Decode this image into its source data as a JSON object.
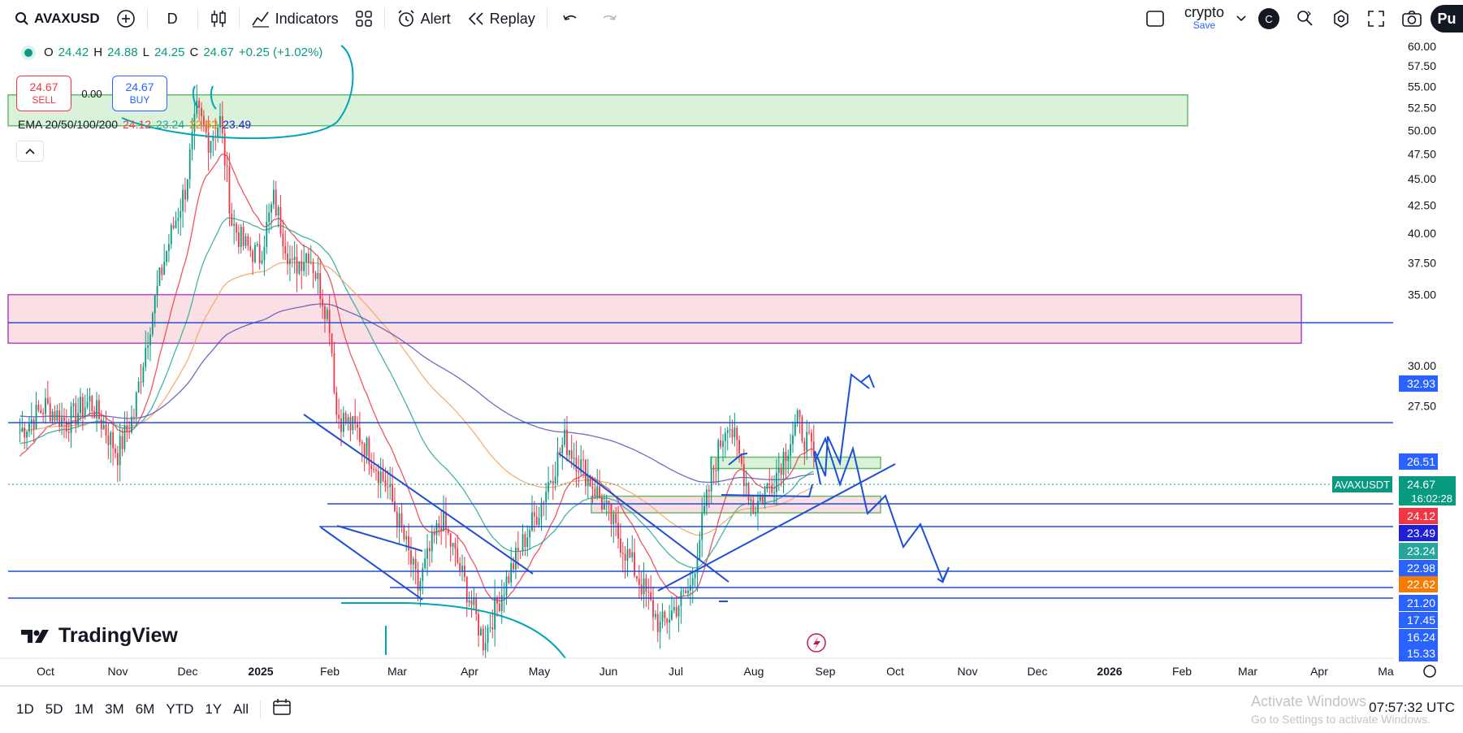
{
  "toolbar": {
    "symbol": "AVAXUSD",
    "interval": "D",
    "indicators_label": "Indicators",
    "alert_label": "Alert",
    "replay_label": "Replay",
    "layout_name": "crypto",
    "save_label": "Save",
    "avatar_initial": "C",
    "publish_label": "Pu"
  },
  "legend": {
    "open_label": "O",
    "open": "24.42",
    "high_label": "H",
    "high": "24.88",
    "low_label": "L",
    "low": "24.25",
    "close_label": "C",
    "close": "24.67",
    "change": "+0.25 (+1.02%)",
    "sell_price": "24.67",
    "sell_label": "SELL",
    "spread": "0.00",
    "buy_price": "24.67",
    "buy_label": "BUY",
    "ema_label": "EMA 20/50/100/200",
    "ema_values": [
      "24.12",
      "23.24",
      "22.62",
      "23.49"
    ]
  },
  "colors": {
    "up": "#089981",
    "down": "#f23645",
    "blue": "#2962ff",
    "ema20": "#f23645",
    "ema50": "#26a69a",
    "ema100": "#f0a35c",
    "ema200": "#5b4fb5",
    "drawing_blue": "#1e4fd6",
    "drawing_teal": "#00a5b8",
    "zone_green": "#d4f0d4",
    "zone_pink": "#fadbe0"
  },
  "chart_data": {
    "type": "candlestick",
    "symbol": "AVAXUSDT",
    "timeframe": "D",
    "scale": "log",
    "y_ticks": [
      "60.00",
      "57.50",
      "55.00",
      "52.50",
      "50.00",
      "47.50",
      "45.00",
      "42.50",
      "40.00",
      "37.50",
      "35.00",
      "30.00",
      "27.50"
    ],
    "x_ticks": [
      "Oct",
      "Nov",
      "Dec",
      "2025",
      "Feb",
      "Mar",
      "Apr",
      "May",
      "Jun",
      "Jul",
      "Aug",
      "Sep",
      "Oct",
      "Nov",
      "Dec",
      "2026",
      "Feb",
      "Mar",
      "Apr",
      "Ma"
    ],
    "price_series": [
      {
        "date": "2024-09-20",
        "close": 26.0
      },
      {
        "date": "2024-10-01",
        "close": 27.5
      },
      {
        "date": "2024-10-10",
        "close": 26.5
      },
      {
        "date": "2024-10-20",
        "close": 27.8
      },
      {
        "date": "2024-11-01",
        "close": 24.8
      },
      {
        "date": "2024-11-08",
        "close": 27.0
      },
      {
        "date": "2024-11-15",
        "close": 33.0
      },
      {
        "date": "2024-11-22",
        "close": 38.5
      },
      {
        "date": "2024-11-30",
        "close": 44.0
      },
      {
        "date": "2024-12-05",
        "close": 52.0
      },
      {
        "date": "2024-12-10",
        "close": 49.0
      },
      {
        "date": "2024-12-15",
        "close": 51.0
      },
      {
        "date": "2024-12-20",
        "close": 41.0
      },
      {
        "date": "2024-12-25",
        "close": 39.0
      },
      {
        "date": "2025-01-01",
        "close": 38.0
      },
      {
        "date": "2025-01-07",
        "close": 43.0
      },
      {
        "date": "2025-01-15",
        "close": 37.0
      },
      {
        "date": "2025-01-22",
        "close": 38.5
      },
      {
        "date": "2025-01-31",
        "close": 33.0
      },
      {
        "date": "2025-02-03",
        "close": 27.0
      },
      {
        "date": "2025-02-12",
        "close": 26.0
      },
      {
        "date": "2025-02-25",
        "close": 23.0
      },
      {
        "date": "2025-03-10",
        "close": 18.5
      },
      {
        "date": "2025-03-20",
        "close": 21.5
      },
      {
        "date": "2025-04-07",
        "close": 16.5
      },
      {
        "date": "2025-04-20",
        "close": 19.5
      },
      {
        "date": "2025-05-01",
        "close": 22.0
      },
      {
        "date": "2025-05-12",
        "close": 25.5
      },
      {
        "date": "2025-05-25",
        "close": 23.0
      },
      {
        "date": "2025-06-05",
        "close": 20.5
      },
      {
        "date": "2025-06-22",
        "close": 17.0
      },
      {
        "date": "2025-07-05",
        "close": 18.5
      },
      {
        "date": "2025-07-15",
        "close": 24.0
      },
      {
        "date": "2025-07-21",
        "close": 26.8
      },
      {
        "date": "2025-08-01",
        "close": 22.0
      },
      {
        "date": "2025-08-10",
        "close": 23.5
      },
      {
        "date": "2025-08-20",
        "close": 26.5
      },
      {
        "date": "2025-08-27",
        "close": 24.67
      }
    ],
    "ema": [
      {
        "name": "EMA 20",
        "last": 24.12
      },
      {
        "name": "EMA 50",
        "last": 23.24
      },
      {
        "name": "EMA 100",
        "last": 22.62
      },
      {
        "name": "EMA 200",
        "last": 23.49
      }
    ],
    "levels": [
      {
        "price": "32.93",
        "color": "#2962ff"
      },
      {
        "price": "26.51",
        "color": "#2962ff"
      },
      {
        "price": "24.12",
        "color": "#f23645"
      },
      {
        "price": "23.49",
        "color": "#1f1fd6"
      },
      {
        "price": "23.24",
        "color": "#26a69a"
      },
      {
        "price": "22.98",
        "color": "#2962ff"
      },
      {
        "price": "22.62",
        "color": "#f57c00"
      },
      {
        "price": "21.20",
        "color": "#2962ff"
      },
      {
        "price": "17.45",
        "color": "#2962ff"
      },
      {
        "price": "16.24",
        "color": "#2962ff"
      },
      {
        "price": "15.33",
        "color": "#2962ff"
      }
    ],
    "last_price": {
      "symbol": "AVAXUSDT",
      "value": "24.67",
      "countdown": "16:02:28"
    },
    "zones": [
      {
        "type": "supply",
        "low": 50.5,
        "high": 54.0,
        "color": "green"
      },
      {
        "type": "resistance",
        "low": 31.5,
        "high": 35.0,
        "color": "pink"
      },
      {
        "type": "demand",
        "low": 24.0,
        "high": 24.6,
        "color": "green"
      },
      {
        "type": "demand",
        "low": 21.8,
        "high": 22.6,
        "color": "pink"
      }
    ]
  },
  "brand": "TradingView",
  "bottom": {
    "ranges": [
      "1D",
      "5D",
      "1M",
      "3M",
      "6M",
      "YTD",
      "1Y",
      "All"
    ],
    "time": "07:57:32 UTC",
    "watermark_title": "Activate Windows",
    "watermark_sub": "Go to Settings to activate Windows."
  }
}
